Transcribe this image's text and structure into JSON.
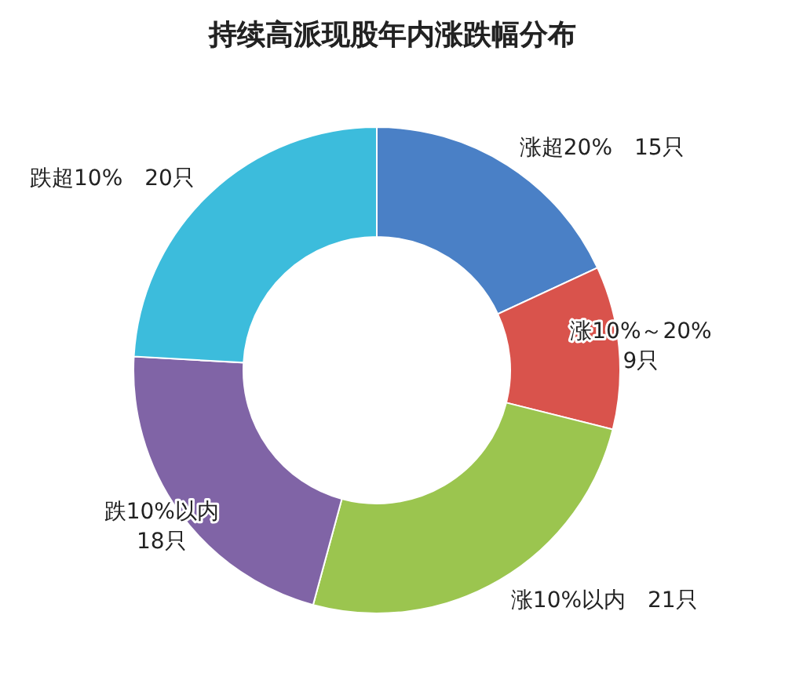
{
  "chart_data": {
    "type": "donut",
    "title": "持续高派现股年内涨跌幅分布",
    "categories": [
      "涨超20%",
      "涨10%～20%",
      "涨10%以内",
      "跌10%以内",
      "跌超10%"
    ],
    "values": [
      15,
      9,
      21,
      18,
      20
    ],
    "value_labels": [
      "15只",
      "9只",
      "21只",
      "18只",
      "20只"
    ],
    "colors": [
      "#4a80c6",
      "#d9534c",
      "#9bc54f",
      "#8064a6",
      "#3cbcdc"
    ]
  }
}
